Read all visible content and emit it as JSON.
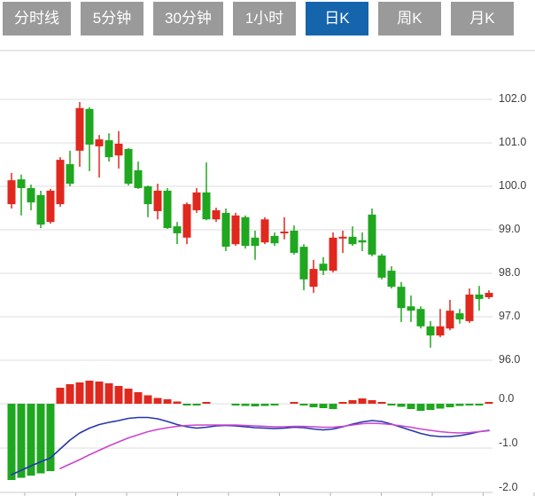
{
  "toolbar": {
    "tabs": [
      {
        "id": "tab-timeline",
        "label": "分时线",
        "active": false
      },
      {
        "id": "tab-5min",
        "label": "5分钟",
        "active": false
      },
      {
        "id": "tab-30min",
        "label": "30分钟",
        "active": false
      },
      {
        "id": "tab-1hour",
        "label": "1小时",
        "active": false
      },
      {
        "id": "tab-daily-k",
        "label": "日K",
        "active": true
      },
      {
        "id": "tab-weekly-k",
        "label": "周K",
        "active": false
      },
      {
        "id": "tab-monthly-k",
        "label": "月K",
        "active": false
      }
    ]
  },
  "colors": {
    "up": "#e0281e",
    "down": "#1fa71f",
    "dif_line": "#2636ae",
    "dea_line": "#cc44cc",
    "grid": "#dcdcdc",
    "panel_border": "#d0d0d0",
    "axis_text": "#404040",
    "active_tab": "#1565ad",
    "inactive_tab": "#9a9a9a"
  },
  "chart_data": {
    "type": "candlestick",
    "title": "",
    "legend": "none",
    "grid": "horizontal-only",
    "price_axis": {
      "side": "right",
      "range": [
        95.8,
        103.1
      ],
      "ticks": [
        {
          "value": 102.0,
          "label": "102.0"
        },
        {
          "value": 101.0,
          "label": "101.0"
        },
        {
          "value": 100.0,
          "label": "100.0"
        },
        {
          "value": 99.0,
          "label": "99.0"
        },
        {
          "value": 98.0,
          "label": "98.0"
        },
        {
          "value": 97.0,
          "label": "97.0"
        },
        {
          "value": 96.0,
          "label": "96.0"
        }
      ]
    },
    "macd_axis": {
      "side": "right",
      "range": [
        -2.0,
        0.6
      ],
      "ticks": [
        {
          "value": 0.0,
          "label": "0.0"
        },
        {
          "value": -1.0,
          "label": "-1.0"
        },
        {
          "value": -2.0,
          "label": "-2.0"
        }
      ]
    },
    "x_axis": {
      "labels": "none",
      "tick_interval_candles": 5
    },
    "candles_ohlc_color": [
      [
        99.59,
        100.31,
        99.49,
        100.14,
        "r"
      ],
      [
        100.16,
        100.27,
        99.33,
        99.96,
        "g"
      ],
      [
        99.96,
        100.04,
        99.45,
        99.63,
        "g"
      ],
      [
        99.8,
        99.9,
        99.04,
        99.12,
        "g"
      ],
      [
        99.18,
        99.94,
        99.14,
        99.9,
        "r"
      ],
      [
        99.59,
        100.67,
        99.53,
        100.61,
        "r"
      ],
      [
        100.51,
        100.82,
        100.0,
        100.06,
        "g"
      ],
      [
        100.82,
        101.94,
        100.45,
        101.8,
        "r"
      ],
      [
        101.78,
        101.82,
        100.35,
        100.96,
        "g"
      ],
      [
        100.92,
        101.18,
        100.2,
        101.08,
        "r"
      ],
      [
        101.06,
        101.22,
        100.57,
        100.67,
        "g"
      ],
      [
        100.71,
        101.27,
        100.41,
        100.98,
        "r"
      ],
      [
        100.86,
        100.88,
        100.02,
        100.06,
        "g"
      ],
      [
        100.37,
        100.57,
        99.94,
        99.96,
        "g"
      ],
      [
        100.0,
        100.02,
        99.29,
        99.59,
        "g"
      ],
      [
        99.43,
        100.06,
        99.24,
        99.9,
        "r"
      ],
      [
        99.9,
        99.96,
        99.02,
        99.04,
        "g"
      ],
      [
        99.08,
        99.18,
        98.67,
        98.92,
        "g"
      ],
      [
        98.82,
        99.63,
        98.67,
        99.59,
        "r"
      ],
      [
        99.45,
        99.96,
        99.39,
        99.86,
        "r"
      ],
      [
        99.86,
        100.55,
        99.22,
        99.24,
        "g"
      ],
      [
        99.24,
        99.51,
        99.18,
        99.45,
        "r"
      ],
      [
        99.39,
        99.49,
        98.51,
        98.61,
        "g"
      ],
      [
        98.67,
        99.39,
        98.63,
        99.33,
        "r"
      ],
      [
        99.29,
        99.33,
        98.57,
        98.63,
        "g"
      ],
      [
        98.82,
        98.98,
        98.31,
        98.63,
        "g"
      ],
      [
        98.71,
        99.29,
        98.67,
        99.24,
        "r"
      ],
      [
        98.86,
        98.94,
        98.63,
        98.69,
        "g"
      ],
      [
        98.92,
        99.29,
        98.78,
        98.96,
        "r"
      ],
      [
        98.98,
        99.1,
        98.43,
        98.47,
        "g"
      ],
      [
        98.61,
        98.67,
        97.61,
        97.86,
        "g"
      ],
      [
        97.69,
        98.31,
        97.55,
        98.1,
        "r"
      ],
      [
        98.22,
        98.37,
        97.96,
        98.06,
        "g"
      ],
      [
        98.06,
        98.94,
        98.02,
        98.82,
        "r"
      ],
      [
        98.8,
        98.98,
        98.47,
        98.84,
        "r"
      ],
      [
        98.84,
        99.08,
        98.63,
        98.67,
        "g"
      ],
      [
        98.76,
        98.94,
        98.51,
        98.71,
        "g"
      ],
      [
        99.35,
        99.49,
        98.39,
        98.43,
        "g"
      ],
      [
        98.41,
        98.45,
        97.86,
        97.9,
        "g"
      ],
      [
        98.06,
        98.16,
        97.65,
        97.69,
        "g"
      ],
      [
        97.69,
        97.8,
        96.88,
        97.2,
        "g"
      ],
      [
        97.24,
        97.49,
        96.88,
        97.14,
        "g"
      ],
      [
        97.18,
        97.24,
        96.73,
        96.78,
        "g"
      ],
      [
        96.78,
        96.9,
        96.29,
        96.57,
        "g"
      ],
      [
        96.57,
        97.18,
        96.53,
        96.78,
        "r"
      ],
      [
        96.73,
        97.39,
        96.69,
        97.14,
        "r"
      ],
      [
        97.08,
        97.18,
        96.84,
        96.94,
        "g"
      ],
      [
        96.9,
        97.65,
        96.86,
        97.51,
        "r"
      ],
      [
        97.51,
        97.71,
        97.14,
        97.41,
        "g"
      ],
      [
        97.45,
        97.61,
        97.41,
        97.55,
        "r"
      ]
    ],
    "macd": {
      "histogram": [
        -1.72,
        -1.67,
        -1.62,
        -1.57,
        -1.52,
        0.36,
        0.44,
        0.48,
        0.52,
        0.5,
        0.46,
        0.4,
        0.34,
        0.26,
        0.19,
        0.13,
        0.1,
        0.05,
        -0.03,
        -0.03,
        0.02,
        0,
        0,
        -0.04,
        -0.05,
        -0.06,
        -0.05,
        -0.03,
        0,
        0.02,
        -0.02,
        -0.08,
        -0.1,
        -0.12,
        0.04,
        0.08,
        0.12,
        0.08,
        0.02,
        -0.03,
        -0.07,
        -0.12,
        -0.16,
        -0.14,
        -0.11,
        -0.08,
        -0.05,
        -0.04,
        -0.03,
        0.04
      ],
      "dif": [
        -1.6,
        -1.5,
        -1.4,
        -1.31,
        -1.22,
        -1.02,
        -0.82,
        -0.66,
        -0.55,
        -0.47,
        -0.42,
        -0.38,
        -0.33,
        -0.31,
        -0.31,
        -0.34,
        -0.4,
        -0.47,
        -0.52,
        -0.55,
        -0.53,
        -0.5,
        -0.49,
        -0.5,
        -0.52,
        -0.54,
        -0.55,
        -0.56,
        -0.55,
        -0.53,
        -0.54,
        -0.57,
        -0.59,
        -0.57,
        -0.52,
        -0.46,
        -0.41,
        -0.38,
        -0.4,
        -0.46,
        -0.53,
        -0.6,
        -0.67,
        -0.72,
        -0.74,
        -0.74,
        -0.72,
        -0.68,
        -0.63,
        -0.6
      ],
      "dea": [
        null,
        null,
        null,
        null,
        null,
        -1.46,
        -1.36,
        -1.26,
        -1.15,
        -1.05,
        -0.95,
        -0.86,
        -0.77,
        -0.7,
        -0.63,
        -0.58,
        -0.54,
        -0.51,
        -0.49,
        -0.48,
        -0.48,
        -0.48,
        -0.48,
        -0.48,
        -0.49,
        -0.5,
        -0.51,
        -0.52,
        -0.52,
        -0.51,
        -0.51,
        -0.52,
        -0.53,
        -0.53,
        -0.51,
        -0.48,
        -0.45,
        -0.44,
        -0.45,
        -0.47,
        -0.5,
        -0.53,
        -0.57,
        -0.6,
        -0.63,
        -0.65,
        -0.66,
        -0.65,
        -0.63,
        -0.61
      ]
    }
  }
}
